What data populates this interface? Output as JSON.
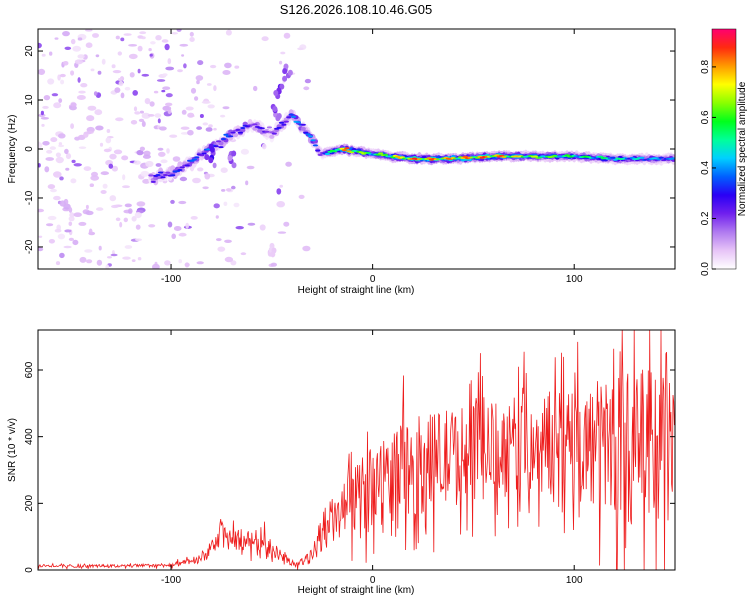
{
  "title": "S126.2026.108.10.46.G05",
  "chart_data": [
    {
      "type": "heatmap",
      "xlabel": "Height of straight line (km)",
      "ylabel": "Frequency (Hz)",
      "xlim": [
        -166,
        150
      ],
      "ylim": [
        -24.5,
        24.5
      ],
      "xticks": [
        -100,
        0,
        100
      ],
      "yticks": [
        -20,
        -10,
        0,
        10,
        20
      ],
      "colorbar": {
        "label": "Normalized spectral amplitude",
        "range": [
          0,
          0.95
        ],
        "ticks": [
          0.0,
          0.2,
          0.4,
          0.6,
          0.8
        ],
        "colormap": [
          "#ffffff",
          "#e7c4f7",
          "#b07af0",
          "#7020ee",
          "#2a00f5",
          "#0060ff",
          "#00d0ff",
          "#00ff9a",
          "#00ff1c",
          "#8aff00",
          "#ffff00",
          "#ff9a00",
          "#ff2a10",
          "#ff0070"
        ]
      },
      "ridge": {
        "description_points_x": [
          -110,
          -95,
          -80,
          -70,
          -60,
          -50,
          -40,
          -32,
          -25,
          -15,
          0,
          20,
          40,
          60,
          80,
          100,
          120,
          150
        ],
        "frequency_hz": [
          -6,
          -4,
          0,
          3,
          5,
          3,
          7,
          3,
          -1,
          0,
          -1,
          -2,
          -2,
          -1.5,
          -1.5,
          -1.5,
          -2,
          -2
        ],
        "peak_amplitude": [
          0.3,
          0.35,
          0.4,
          0.35,
          0.3,
          0.25,
          0.4,
          0.45,
          0.3,
          0.9,
          0.6,
          0.9,
          0.85,
          0.9,
          0.7,
          0.6,
          0.55,
          0.4
        ]
      },
      "noise_region_x": [
        -166,
        -30
      ]
    },
    {
      "type": "line",
      "xlabel": "Height of straight line (km)",
      "ylabel": "SNR (10 * v/v)",
      "xlim": [
        -166,
        150
      ],
      "ylim": [
        0,
        720
      ],
      "xticks": [
        -100,
        0,
        100
      ],
      "yticks": [
        0,
        200,
        400,
        600
      ],
      "color": "#ee1c1c",
      "envelope_x": [
        -166,
        -120,
        -100,
        -85,
        -75,
        -65,
        -55,
        -45,
        -38,
        -30,
        -25,
        -15,
        -5,
        5,
        20,
        40,
        60,
        80,
        100,
        120,
        135,
        150
      ],
      "envelope_mean": [
        12,
        12,
        15,
        30,
        100,
        90,
        90,
        40,
        15,
        40,
        120,
        170,
        230,
        270,
        310,
        340,
        360,
        380,
        370,
        380,
        360,
        350
      ],
      "envelope_amp": [
        6,
        6,
        8,
        15,
        50,
        45,
        45,
        20,
        10,
        30,
        80,
        110,
        150,
        180,
        200,
        200,
        200,
        200,
        220,
        300,
        320,
        320
      ]
    }
  ]
}
